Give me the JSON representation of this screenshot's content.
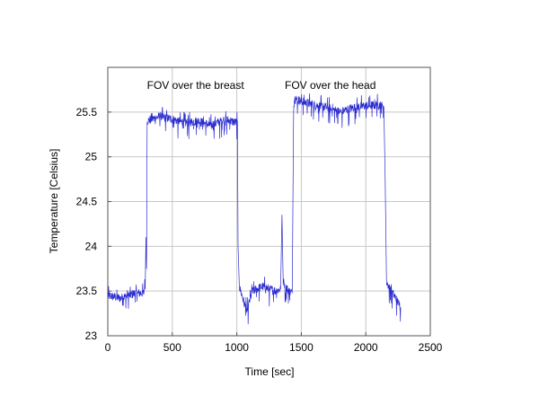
{
  "chart_data": {
    "type": "line",
    "title": "",
    "xlabel": "Time [sec]",
    "ylabel": "Temperature [Celsius]",
    "xlim": [
      0,
      2500
    ],
    "ylim": [
      23,
      26
    ],
    "xticks": [
      0,
      500,
      1000,
      1500,
      2000,
      2500
    ],
    "yticks": [
      23,
      23.5,
      24,
      24.5,
      25,
      25.5
    ],
    "xtick_labels": [
      "0",
      "500",
      "1000",
      "1500",
      "2000",
      "2500"
    ],
    "ytick_labels": [
      "23",
      "23.5",
      "24",
      "24.5",
      "25",
      "25.5"
    ],
    "grid": true,
    "legend": null,
    "annotations": [
      {
        "text": "FOV over the breast",
        "x": 680,
        "y": 25.8
      },
      {
        "text": "FOV over the head",
        "x": 1725,
        "y": 25.8
      }
    ],
    "series": [
      {
        "name": "Temperature",
        "color": "#2b2bd0",
        "x": [
          0,
          100,
          200,
          280,
          292,
          296,
          300,
          305,
          400,
          500,
          600,
          700,
          800,
          900,
          1000,
          1005,
          1010,
          1020,
          1060,
          1080,
          1120,
          1200,
          1300,
          1340,
          1350,
          1360,
          1400,
          1430,
          1440,
          1450,
          1500,
          1600,
          1700,
          1800,
          1900,
          2000,
          2100,
          2140,
          2150,
          2160,
          2200,
          2240,
          2270
        ],
        "y": [
          23.45,
          23.42,
          23.47,
          23.48,
          23.7,
          24.1,
          23.75,
          25.4,
          25.45,
          25.42,
          25.38,
          25.4,
          25.35,
          25.42,
          25.38,
          25.4,
          24.0,
          23.55,
          23.35,
          23.28,
          23.5,
          23.55,
          23.5,
          23.52,
          24.35,
          23.6,
          23.5,
          23.48,
          25.6,
          25.65,
          25.62,
          25.58,
          25.55,
          25.5,
          25.55,
          25.57,
          25.58,
          25.56,
          24.8,
          23.6,
          23.5,
          23.4,
          23.32
        ]
      }
    ]
  }
}
